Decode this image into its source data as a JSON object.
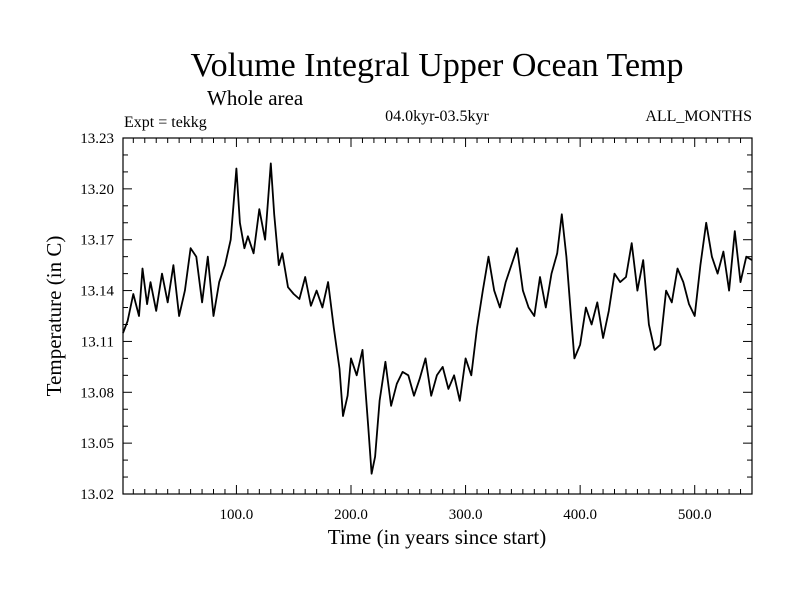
{
  "chart_data": {
    "type": "line",
    "title": "Volume Integral Upper Ocean Temp",
    "subtitle": "Whole area",
    "experiment_label": "Expt = tekkg",
    "period_label": "04.0kyr-03.5kyr",
    "season_label": "ALL_MONTHS",
    "xlabel": "Time (in years since start)",
    "ylabel": "Temperature (in C)",
    "xlim": [
      1,
      550
    ],
    "ylim": [
      13.02,
      13.23
    ],
    "x_ticks": [
      100,
      200,
      300,
      400,
      500
    ],
    "x_tick_labels": [
      "100.0",
      "200.0",
      "300.0",
      "400.0",
      "500.0"
    ],
    "y_ticks": [
      13.02,
      13.05,
      13.08,
      13.11,
      13.14,
      13.17,
      13.2,
      13.23
    ],
    "y_tick_labels": [
      "13.02",
      "13.05",
      "13.08",
      "13.11",
      "13.14",
      "13.17",
      "13.20",
      "13.23"
    ],
    "grid": false,
    "line_color": "#000000",
    "series": [
      {
        "name": "tekkg",
        "x": [
          1,
          5,
          10,
          15,
          18,
          22,
          25,
          30,
          35,
          40,
          45,
          50,
          55,
          60,
          65,
          70,
          75,
          80,
          85,
          90,
          95,
          98,
          100,
          103,
          107,
          110,
          115,
          120,
          125,
          130,
          133,
          137,
          140,
          145,
          150,
          155,
          160,
          165,
          170,
          175,
          180,
          185,
          190,
          193,
          197,
          200,
          205,
          210,
          213,
          215,
          218,
          221,
          225,
          230,
          235,
          240,
          245,
          250,
          255,
          260,
          265,
          270,
          275,
          280,
          285,
          290,
          295,
          300,
          305,
          310,
          315,
          320,
          325,
          330,
          335,
          340,
          345,
          350,
          355,
          360,
          365,
          370,
          375,
          380,
          384,
          388,
          392,
          395,
          400,
          405,
          410,
          415,
          420,
          425,
          430,
          435,
          440,
          445,
          450,
          455,
          460,
          465,
          470,
          475,
          480,
          485,
          490,
          495,
          500,
          505,
          510,
          515,
          520,
          525,
          530,
          535,
          540,
          545,
          550
        ],
        "values": [
          13.115,
          13.122,
          13.138,
          13.125,
          13.153,
          13.132,
          13.145,
          13.128,
          13.15,
          13.133,
          13.155,
          13.125,
          13.14,
          13.165,
          13.16,
          13.133,
          13.16,
          13.125,
          13.145,
          13.155,
          13.17,
          13.195,
          13.212,
          13.18,
          13.165,
          13.172,
          13.162,
          13.188,
          13.17,
          13.215,
          13.185,
          13.155,
          13.162,
          13.142,
          13.138,
          13.135,
          13.148,
          13.131,
          13.14,
          13.13,
          13.145,
          13.118,
          13.094,
          13.066,
          13.078,
          13.1,
          13.09,
          13.105,
          13.078,
          13.06,
          13.032,
          13.042,
          13.075,
          13.098,
          13.072,
          13.085,
          13.092,
          13.09,
          13.078,
          13.088,
          13.1,
          13.078,
          13.09,
          13.095,
          13.082,
          13.09,
          13.075,
          13.1,
          13.09,
          13.118,
          13.14,
          13.16,
          13.14,
          13.13,
          13.145,
          13.155,
          13.165,
          13.14,
          13.13,
          13.125,
          13.148,
          13.13,
          13.15,
          13.162,
          13.185,
          13.16,
          13.125,
          13.1,
          13.108,
          13.13,
          13.12,
          13.133,
          13.112,
          13.128,
          13.15,
          13.145,
          13.148,
          13.168,
          13.14,
          13.158,
          13.12,
          13.105,
          13.108,
          13.14,
          13.133,
          13.153,
          13.145,
          13.132,
          13.125,
          13.155,
          13.18,
          13.16,
          13.15,
          13.163,
          13.14,
          13.175,
          13.145,
          13.16,
          13.158
        ]
      }
    ]
  }
}
